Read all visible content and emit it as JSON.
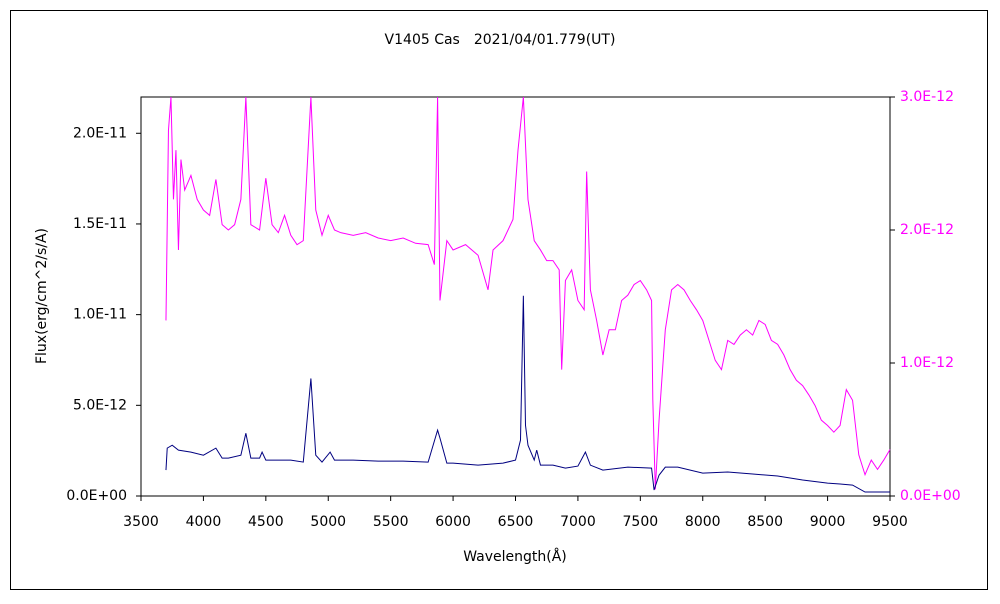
{
  "chart_data": {
    "type": "line",
    "title": "V1405 Cas　2021/04/01.779(UT)",
    "xlabel": "Wavelength(Å)",
    "ylabel": "Flux(erg/cm^2/s/A)",
    "xlim": [
      3500,
      9500
    ],
    "xticks": [
      3500,
      4000,
      4500,
      5000,
      5500,
      6000,
      6500,
      7000,
      7500,
      8000,
      8500,
      9000,
      9500
    ],
    "ylim": [
      0,
      2.2e-11
    ],
    "yticks": [
      {
        "value": 0,
        "label": "0.0E+00"
      },
      {
        "value": 5e-12,
        "label": "5.0E-12"
      },
      {
        "value": 1e-11,
        "label": "1.0E-11"
      },
      {
        "value": 1.5e-11,
        "label": "1.5E-11"
      },
      {
        "value": 2e-11,
        "label": "2.0E-11"
      }
    ],
    "y2lim": [
      0,
      3e-12
    ],
    "y2ticks": [
      {
        "value": 0,
        "label": "0.0E+00"
      },
      {
        "value": 1e-12,
        "label": "1.0E-12"
      },
      {
        "value": 2e-12,
        "label": "2.0E-12"
      },
      {
        "value": 3e-12,
        "label": "3.0E-12"
      }
    ],
    "y2color": "#ff00ff",
    "series": [
      {
        "color": "#ff00ff",
        "axis": "y2",
        "x": [
          3700,
          3720,
          3740,
          3760,
          3780,
          3800,
          3820,
          3850,
          3900,
          3950,
          4000,
          4050,
          4100,
          4150,
          4200,
          4250,
          4300,
          4340,
          4380,
          4450,
          4500,
          4550,
          4600,
          4650,
          4700,
          4750,
          4800,
          4861,
          4900,
          4950,
          5000,
          5050,
          5100,
          5200,
          5300,
          5400,
          5500,
          5600,
          5700,
          5800,
          5850,
          5876,
          5895,
          5950,
          6000,
          6100,
          6200,
          6280,
          6320,
          6400,
          6480,
          6520,
          6563,
          6600,
          6650,
          6700,
          6750,
          6800,
          6850,
          6870,
          6900,
          6950,
          7000,
          7050,
          7070,
          7100,
          7150,
          7200,
          7250,
          7300,
          7350,
          7400,
          7450,
          7500,
          7550,
          7590,
          7600,
          7620,
          7650,
          7700,
          7750,
          7800,
          7850,
          7900,
          7950,
          8000,
          8050,
          8100,
          8150,
          8200,
          8250,
          8300,
          8350,
          8400,
          8450,
          8500,
          8550,
          8600,
          8650,
          8700,
          8750,
          8800,
          8850,
          8900,
          8950,
          9000,
          9050,
          9100,
          9150,
          9200,
          9250,
          9300,
          9350,
          9400,
          9450,
          9500
        ],
        "values": [
          1.32e-12,
          2.75e-12,
          3e-12,
          2.23e-12,
          2.6e-12,
          1.85e-12,
          2.53e-12,
          2.3e-12,
          2.41e-12,
          2.23e-12,
          2.15e-12,
          2.11e-12,
          2.38e-12,
          2.04e-12,
          2e-12,
          2.04e-12,
          2.23e-12,
          3e-12,
          2.04e-12,
          2e-12,
          2.39e-12,
          2.04e-12,
          1.98e-12,
          2.11e-12,
          1.96e-12,
          1.89e-12,
          1.92e-12,
          3e-12,
          2.15e-12,
          1.96e-12,
          2.11e-12,
          2e-12,
          1.98e-12,
          1.96e-12,
          1.98e-12,
          1.94e-12,
          1.92e-12,
          1.94e-12,
          1.9e-12,
          1.89e-12,
          1.74e-12,
          3e-12,
          1.47e-12,
          1.92e-12,
          1.85e-12,
          1.89e-12,
          1.81e-12,
          1.55e-12,
          1.85e-12,
          1.92e-12,
          2.08e-12,
          2.6e-12,
          3e-12,
          2.23e-12,
          1.92e-12,
          1.85e-12,
          1.77e-12,
          1.77e-12,
          1.7e-12,
          9.5e-13,
          1.62e-12,
          1.7e-12,
          1.47e-12,
          1.4e-12,
          2.44e-12,
          1.55e-12,
          1.32e-12,
          1.06e-12,
          1.25e-12,
          1.25e-12,
          1.47e-12,
          1.51e-12,
          1.59e-12,
          1.62e-12,
          1.55e-12,
          1.47e-12,
          7.2e-13,
          5e-14,
          5.7e-13,
          1.25e-12,
          1.55e-12,
          1.59e-12,
          1.55e-12,
          1.47e-12,
          1.4e-12,
          1.32e-12,
          1.17e-12,
          1.02e-12,
          9.5e-13,
          1.17e-12,
          1.14e-12,
          1.21e-12,
          1.25e-12,
          1.21e-12,
          1.32e-12,
          1.29e-12,
          1.17e-12,
          1.14e-12,
          1.06e-12,
          9.5e-13,
          8.7e-13,
          8.3e-13,
          7.6e-13,
          6.8e-13,
          5.7e-13,
          5.3e-13,
          4.8e-13,
          5.3e-13,
          8e-13,
          7.2e-13,
          3.1e-13,
          1.6e-13,
          2.7e-13,
          2e-13,
          2.7e-13,
          3.5e-13
        ]
      },
      {
        "color": "#000080",
        "x": [
          3700,
          3710,
          3750,
          3800,
          3900,
          4000,
          4100,
          4150,
          4200,
          4300,
          4340,
          4380,
          4450,
          4470,
          4500,
          4600,
          4700,
          4800,
          4861,
          4900,
          4950,
          5015,
          5050,
          5200,
          5400,
          5600,
          5800,
          5876,
          5895,
          5950,
          6000,
          6200,
          6400,
          6500,
          6540,
          6563,
          6580,
          6600,
          6650,
          6670,
          6700,
          6800,
          6900,
          7000,
          7060,
          7100,
          7200,
          7400,
          7590,
          7610,
          7650,
          7700,
          7800,
          8000,
          8200,
          8400,
          8600,
          8800,
          9000,
          9100,
          9200,
          9300,
          9400,
          9500
        ],
        "values": [
          1.43e-12,
          2.64e-12,
          2.8e-12,
          2.53e-12,
          2.42e-12,
          2.25e-12,
          2.64e-12,
          2.09e-12,
          2.09e-12,
          2.25e-12,
          3.46e-12,
          2.09e-12,
          2.09e-12,
          2.42e-12,
          1.98e-12,
          1.98e-12,
          1.98e-12,
          1.87e-12,
          6.48e-12,
          2.25e-12,
          1.87e-12,
          2.42e-12,
          1.98e-12,
          1.98e-12,
          1.92e-12,
          1.92e-12,
          1.87e-12,
          3.63e-12,
          3.19e-12,
          1.81e-12,
          1.81e-12,
          1.7e-12,
          1.81e-12,
          1.98e-12,
          3.08e-12,
          1.104e-11,
          3.9e-12,
          2.8e-12,
          1.98e-12,
          2.53e-12,
          1.7e-12,
          1.7e-12,
          1.54e-12,
          1.65e-12,
          2.42e-12,
          1.7e-12,
          1.43e-12,
          1.59e-12,
          1.54e-12,
          3.3e-13,
          1.15e-12,
          1.59e-12,
          1.59e-12,
          1.26e-12,
          1.32e-12,
          1.21e-12,
          1.1e-12,
          8.8e-13,
          7.1e-13,
          6.6e-13,
          6e-13,
          2.2e-13,
          2.2e-13,
          2.2e-13
        ]
      }
    ]
  }
}
